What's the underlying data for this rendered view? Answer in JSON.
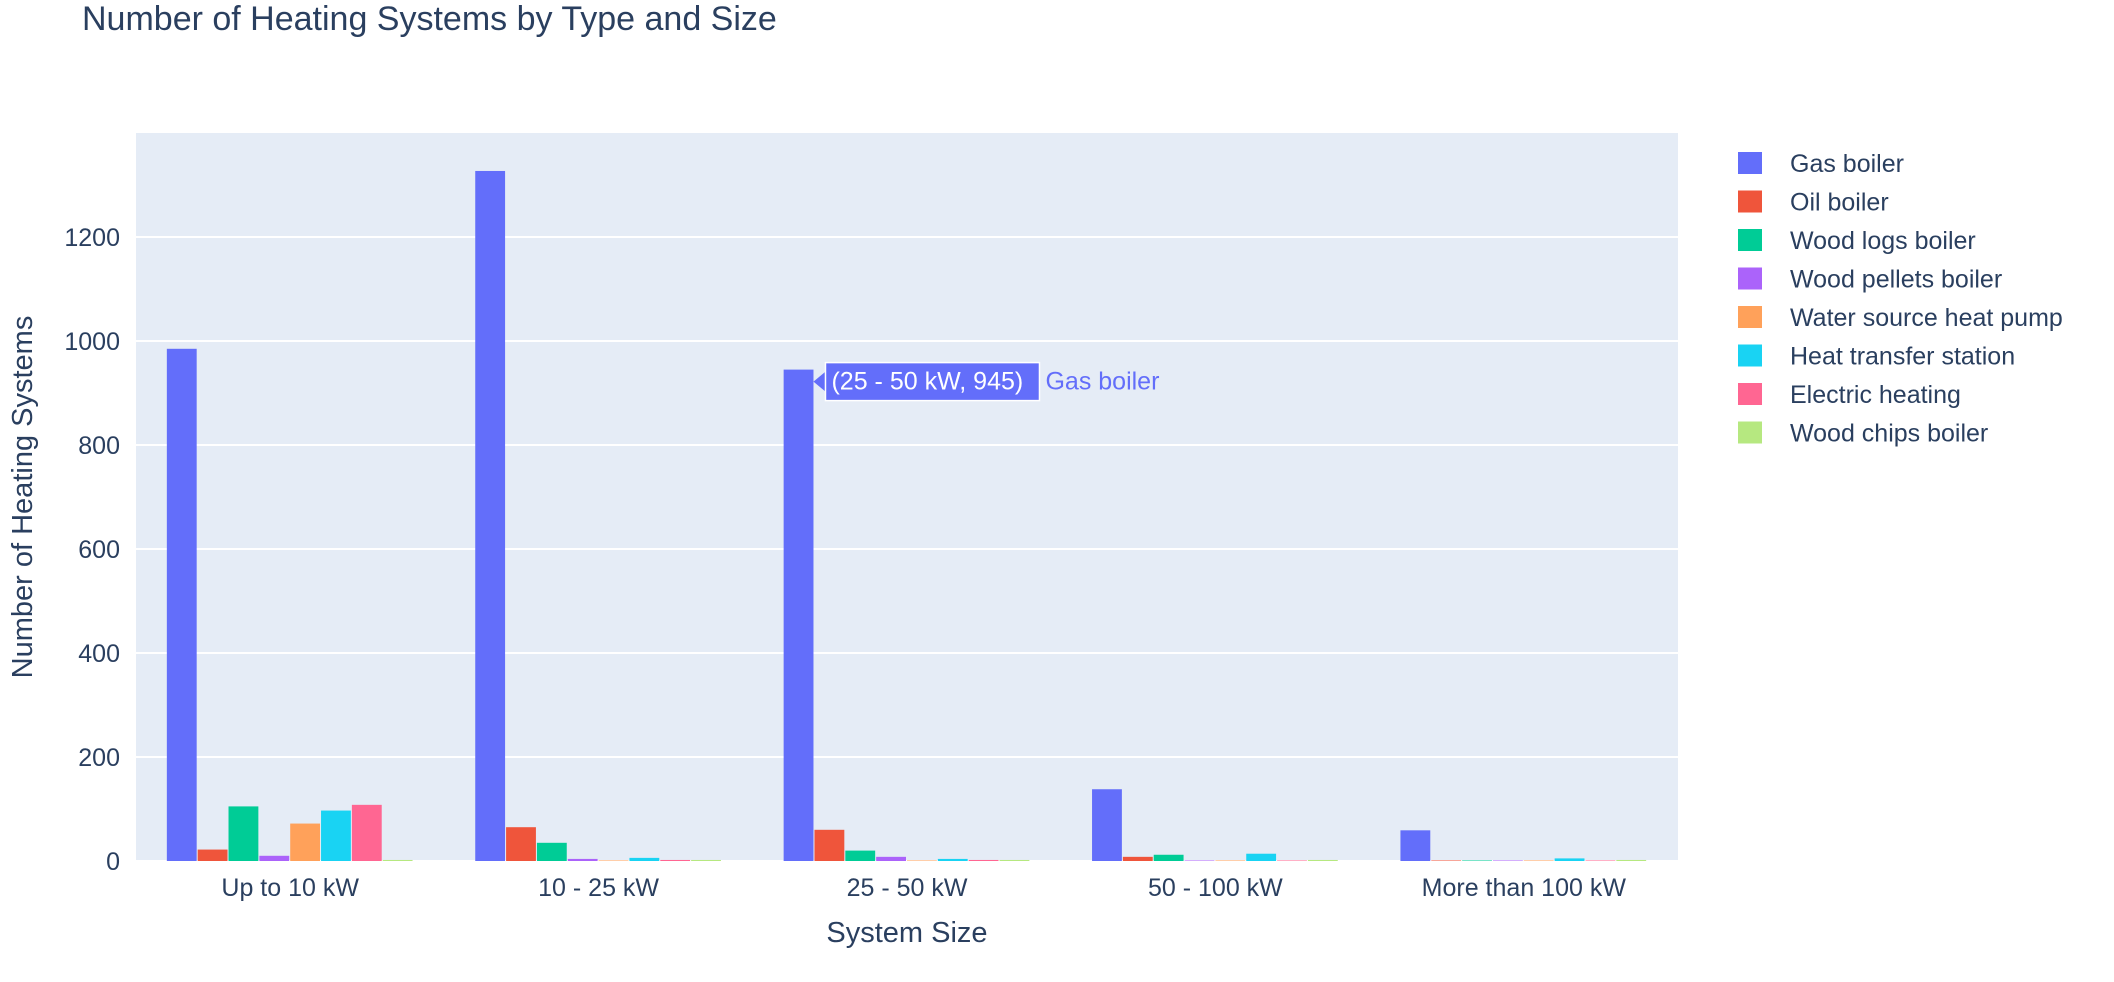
{
  "chart_data": {
    "type": "bar",
    "title": "Number of Heating Systems by Type and Size",
    "xlabel": "System Size",
    "ylabel": "Number of Heating Systems",
    "ylim": [
      0,
      1400
    ],
    "yticks": [
      0,
      200,
      400,
      600,
      800,
      1000,
      1200
    ],
    "grid": true,
    "legend": "right",
    "categories": [
      "Up to 10 kW",
      "10 - 25 kW",
      "25 - 50 kW",
      "50 - 100 kW",
      "More than 100 kW"
    ],
    "series": [
      {
        "name": "Gas boiler",
        "color": "#636efa",
        "values": [
          985,
          1327,
          945,
          138,
          59
        ]
      },
      {
        "name": "Oil boiler",
        "color": "#EF553B",
        "values": [
          22,
          65,
          60,
          8,
          1
        ]
      },
      {
        "name": "Wood logs boiler",
        "color": "#00cc96",
        "values": [
          105,
          35,
          20,
          12,
          1
        ]
      },
      {
        "name": "Wood pellets boiler",
        "color": "#ab63fa",
        "values": [
          10,
          4,
          8,
          1,
          1
        ]
      },
      {
        "name": "Water source heat pump",
        "color": "#FFA15A",
        "values": [
          72,
          1,
          1,
          1,
          1
        ]
      },
      {
        "name": "Heat transfer station",
        "color": "#19d3f3",
        "values": [
          97,
          6,
          4,
          14,
          5
        ]
      },
      {
        "name": "Electric heating",
        "color": "#FF6692",
        "values": [
          108,
          2,
          2,
          1,
          1
        ]
      },
      {
        "name": "Wood chips boiler",
        "color": "#B6E880",
        "values": [
          2,
          2,
          2,
          2,
          2
        ]
      }
    ],
    "tooltip": {
      "text": "(25 - 50 kW, 945)",
      "series_label": "Gas boiler",
      "category_index": 2,
      "series_index": 0
    }
  }
}
